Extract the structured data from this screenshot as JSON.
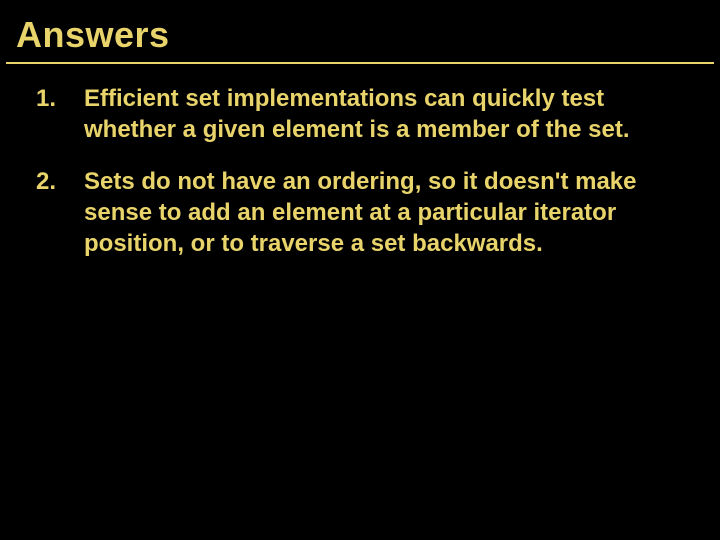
{
  "slide": {
    "title": "Answers",
    "items": [
      {
        "text": "Efficient set implementations can quickly test whether a given element is a member of the set."
      },
      {
        "text": "Sets do not have an ordering, so it doesn't make sense to add an element at a particular iterator position, or to traverse a set backwards."
      }
    ],
    "colors": {
      "background": "#000000",
      "accent": "#e8d46a"
    },
    "typography": {
      "title_fontsize": 36,
      "body_fontsize": 24,
      "font_family": "Arial",
      "weight": "bold"
    }
  }
}
